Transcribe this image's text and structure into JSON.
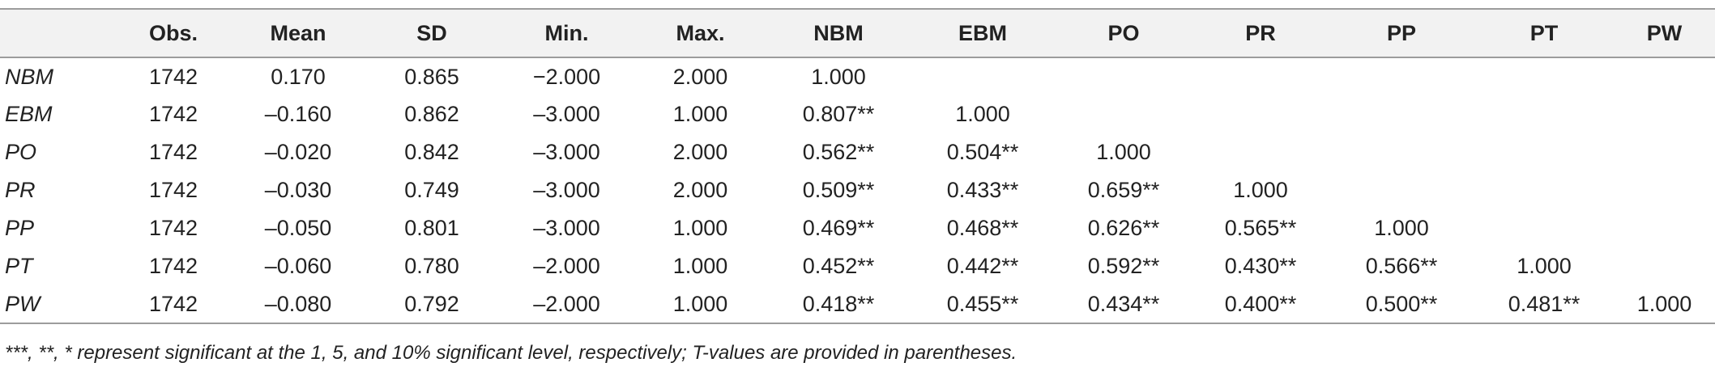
{
  "table": {
    "headers": [
      "",
      "Obs.",
      "Mean",
      "SD",
      "Min.",
      "Max.",
      "NBM",
      "EBM",
      "PO",
      "PR",
      "PP",
      "PT",
      "PW"
    ],
    "rows": [
      [
        "NBM",
        "1742",
        "0.170",
        "0.865",
        "−2.000",
        "2.000",
        "1.000",
        "",
        "",
        "",
        "",
        "",
        ""
      ],
      [
        "EBM",
        "1742",
        "–0.160",
        "0.862",
        "–3.000",
        "1.000",
        "0.807**",
        "1.000",
        "",
        "",
        "",
        "",
        ""
      ],
      [
        "PO",
        "1742",
        "–0.020",
        "0.842",
        "–3.000",
        "2.000",
        "0.562**",
        "0.504**",
        "1.000",
        "",
        "",
        "",
        ""
      ],
      [
        "PR",
        "1742",
        "–0.030",
        "0.749",
        "–3.000",
        "2.000",
        "0.509**",
        "0.433**",
        "0.659**",
        "1.000",
        "",
        "",
        ""
      ],
      [
        "PP",
        "1742",
        "–0.050",
        "0.801",
        "–3.000",
        "1.000",
        "0.469**",
        "0.468**",
        "0.626**",
        "0.565**",
        "1.000",
        "",
        ""
      ],
      [
        "PT",
        "1742",
        "–0.060",
        "0.780",
        "–2.000",
        "1.000",
        "0.452**",
        "0.442**",
        "0.592**",
        "0.430**",
        "0.566**",
        "1.000",
        ""
      ],
      [
        "PW",
        "1742",
        "–0.080",
        "0.792",
        "–2.000",
        "1.000",
        "0.418**",
        "0.455**",
        "0.434**",
        "0.400**",
        "0.500**",
        "0.481**",
        "1.000"
      ]
    ]
  },
  "footnote": "***, **, * represent significant at the 1, 5, and 10% significant level, respectively; T-values are provided in parentheses."
}
